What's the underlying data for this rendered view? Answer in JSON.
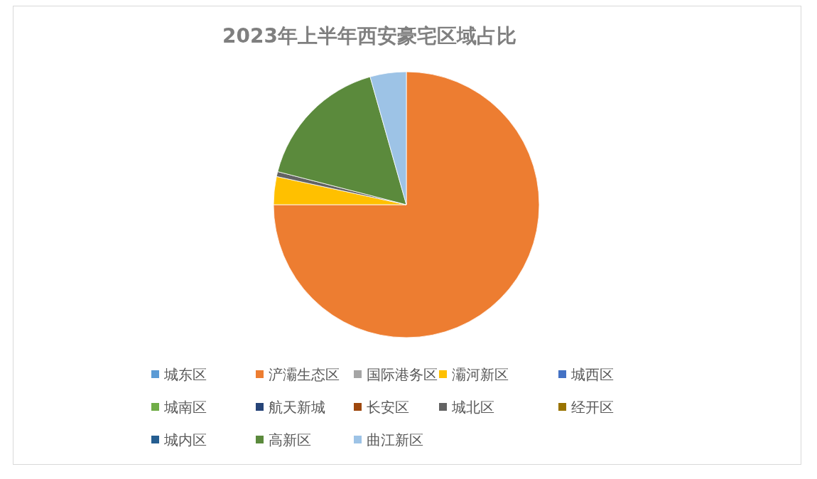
{
  "chart_data": {
    "type": "pie",
    "title": "2023年上半年西安豪宅区域占比",
    "categories": [
      "城东区",
      "浐灞生态区",
      "国际港务区",
      "灞河新区",
      "城西区",
      "城南区",
      "航天新城",
      "长安区",
      "城北区",
      "经开区",
      "城内区",
      "高新区",
      "曲江新区"
    ],
    "values": [
      0,
      75,
      0,
      3.4,
      0,
      0,
      0,
      0,
      0.6,
      0,
      0,
      16.6,
      4.4
    ],
    "colors": [
      "#5b9bd5",
      "#ed7d31",
      "#a5a5a5",
      "#ffc000",
      "#4472c4",
      "#70ad47",
      "#264478",
      "#9e480e",
      "#636363",
      "#997300",
      "#255e91",
      "#5b8a3c",
      "#9dc3e6"
    ],
    "legend": "bottom"
  }
}
